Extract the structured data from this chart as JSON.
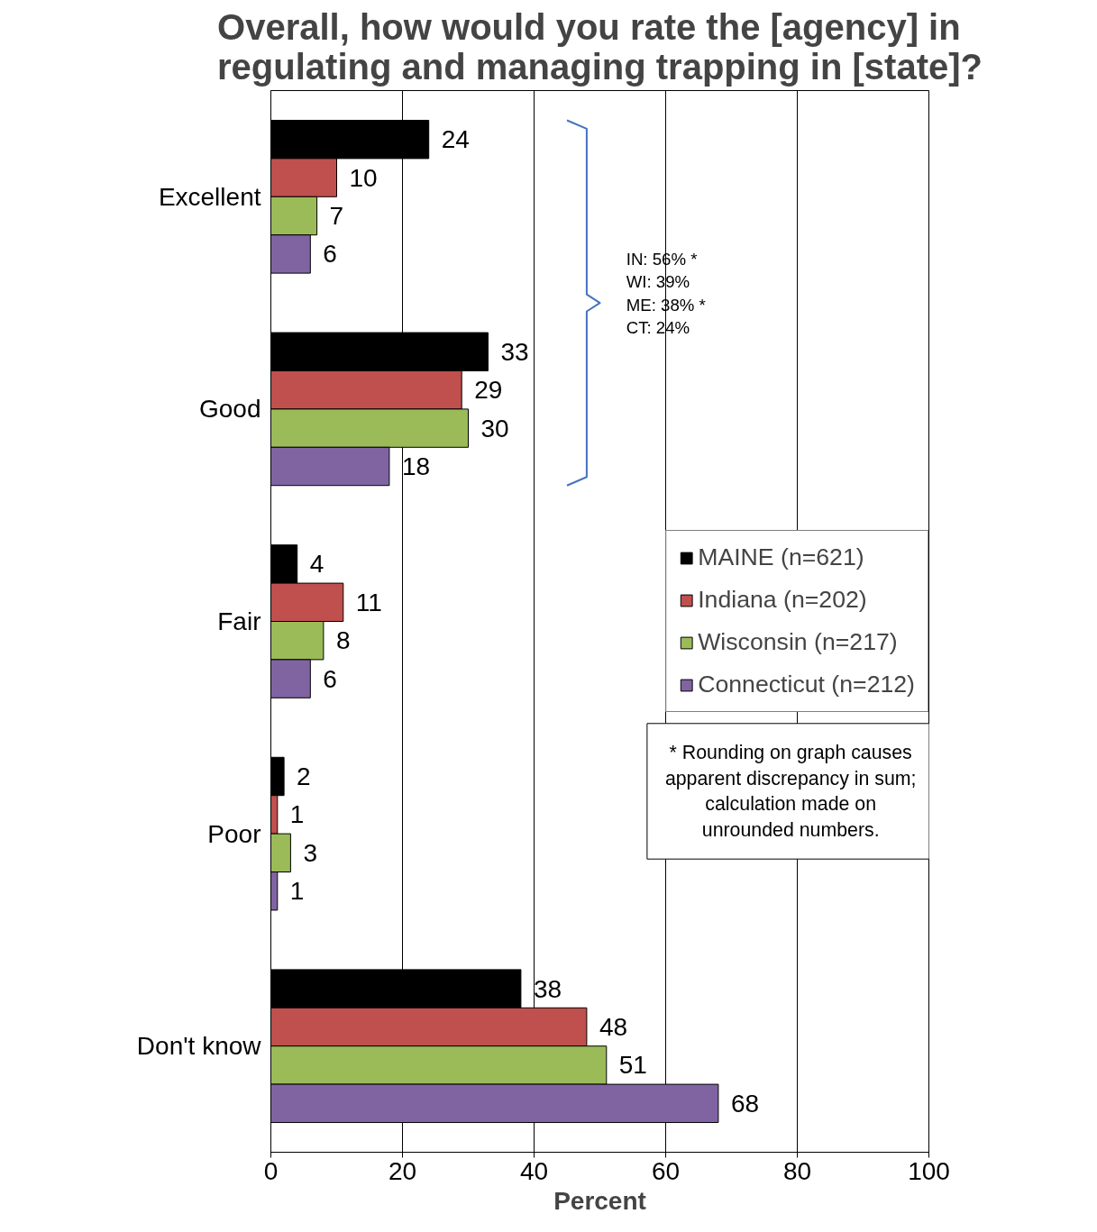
{
  "chart_data": {
    "type": "bar",
    "orientation": "horizontal",
    "title": "Overall, how would you rate the [agency] in\nregulating and managing trapping in [state]?",
    "xlabel": "Percent",
    "categories": [
      "Excellent",
      "Good",
      "Fair",
      "Poor",
      "Don't know"
    ],
    "series": [
      {
        "name": "MAINE (n=621)",
        "color": "#000000",
        "values": [
          24,
          33,
          4,
          2,
          38
        ]
      },
      {
        "name": "Indiana (n=202)",
        "color": "#c0504d",
        "values": [
          10,
          29,
          11,
          1,
          48
        ]
      },
      {
        "name": "Wisconsin (n=217)",
        "color": "#9bbb59",
        "values": [
          7,
          30,
          8,
          3,
          51
        ]
      },
      {
        "name": "Connecticut (n=212)",
        "color": "#8064a2",
        "values": [
          6,
          18,
          6,
          1,
          68
        ]
      }
    ],
    "data_labels": true,
    "xlim": [
      0,
      100
    ],
    "xticks": [
      0,
      20,
      40,
      60,
      80,
      100
    ],
    "grid": "x",
    "legend": "right",
    "annotations": [
      "IN: 56% *\nWI: 39%\nME: 38% *\nCT: 24%",
      "* Rounding on graph causes\napparent discrepancy in sum;\ncalculation made on\nunrounded numbers."
    ]
  }
}
